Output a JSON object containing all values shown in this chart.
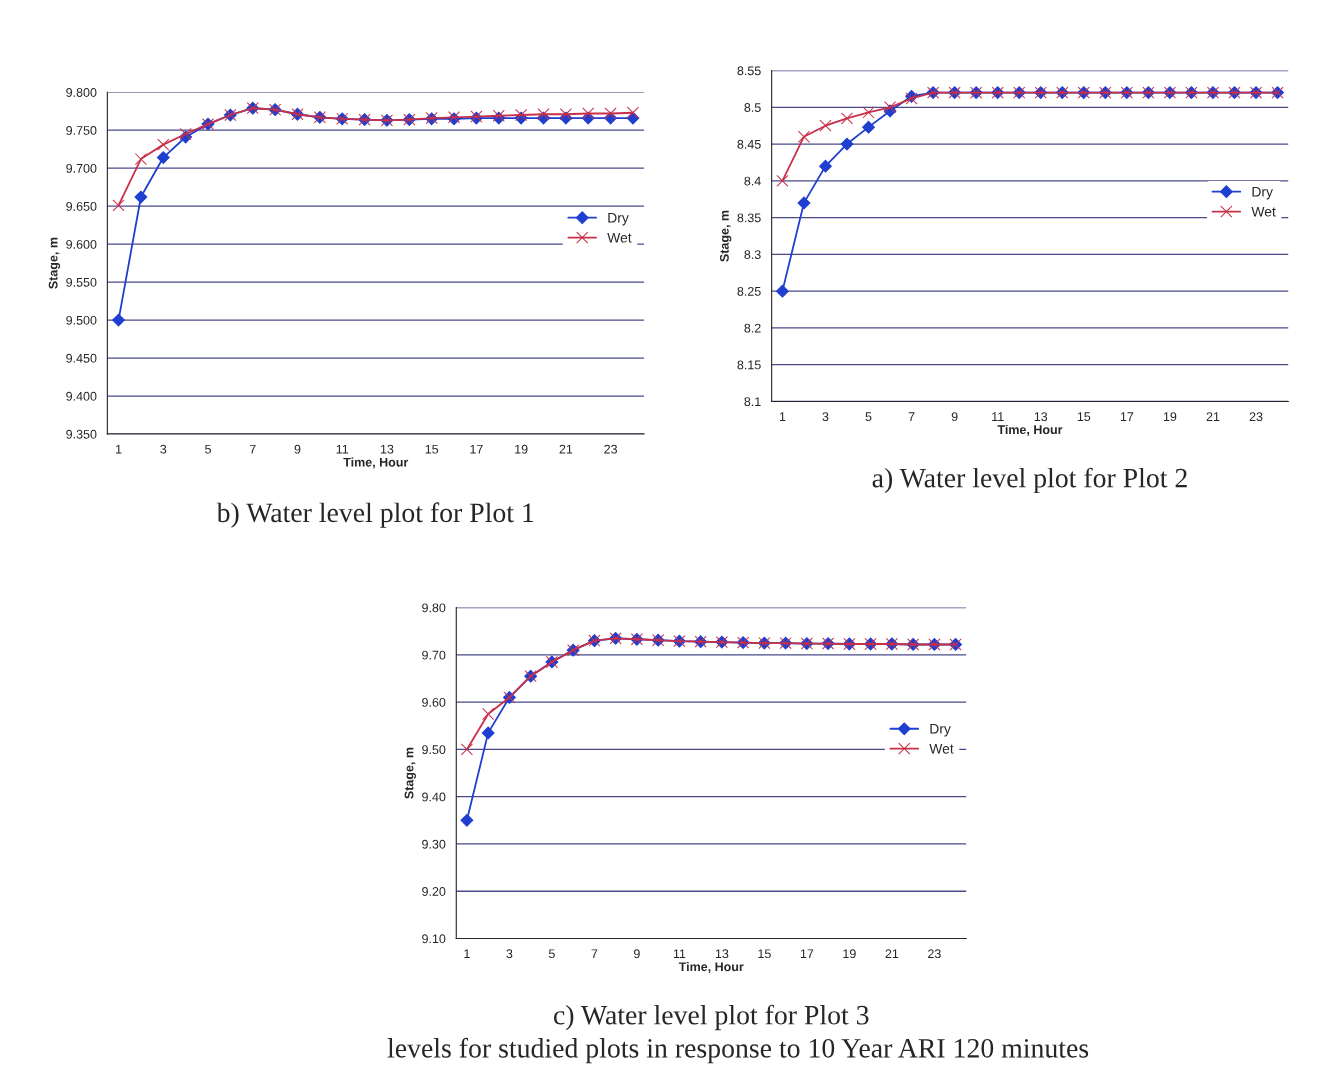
{
  "chart_data": [
    {
      "type": "line",
      "title": "b) Water level plot for Plot 1",
      "xlabel": "Time, Hour",
      "ylabel": "Stage, m",
      "categories": [
        "1",
        null,
        "3",
        null,
        "5",
        null,
        "7",
        null,
        "9",
        null,
        "11",
        null,
        "13",
        null,
        "15",
        null,
        "17",
        null,
        "19",
        null,
        "21",
        null,
        "23",
        null
      ],
      "series": [
        {
          "name": "Dry",
          "color": "#1f3fd0",
          "marker": "diamond",
          "values": [
            9.5,
            9.662,
            9.714,
            9.741,
            9.758,
            9.77,
            9.779,
            9.777,
            9.771,
            9.767,
            9.765,
            9.764,
            9.763,
            9.764,
            9.765,
            9.765,
            9.766,
            9.766,
            9.766,
            9.766,
            9.766,
            9.766,
            9.766,
            9.766
          ]
        },
        {
          "name": "Wet",
          "color": "#c8304a",
          "marker": "cross",
          "values": [
            9.651,
            9.712,
            9.731,
            9.745,
            9.758,
            9.77,
            9.779,
            9.777,
            9.771,
            9.767,
            9.765,
            9.764,
            9.763,
            9.764,
            9.766,
            9.767,
            9.768,
            9.769,
            9.77,
            9.771,
            9.771,
            9.772,
            9.772,
            9.773
          ]
        }
      ],
      "ylim": [
        9.35,
        9.8
      ],
      "yticks": [
        {
          "value": 9.35,
          "label": "9.350"
        },
        {
          "value": 9.4,
          "label": "9.400"
        },
        {
          "value": 9.45,
          "label": "9.450"
        },
        {
          "value": 9.5,
          "label": "9.500"
        },
        {
          "value": 9.55,
          "label": "9.550"
        },
        {
          "value": 9.6,
          "label": "9.600"
        },
        {
          "value": 9.65,
          "label": "9.650"
        },
        {
          "value": 9.7,
          "label": "9.700"
        },
        {
          "value": 9.75,
          "label": "9.750"
        },
        {
          "value": 9.8,
          "label": "9.800"
        }
      ],
      "grid": "y",
      "legend": "right",
      "line_style": "solid"
    },
    {
      "type": "line",
      "title": "a) Water level plot for Plot 2",
      "xlabel": "Time, Hour",
      "ylabel": "Stage, m",
      "categories": [
        "1",
        null,
        "3",
        null,
        "5",
        null,
        "7",
        null,
        "9",
        null,
        "11",
        null,
        "13",
        null,
        "15",
        null,
        "17",
        null,
        "19",
        null,
        "21",
        null,
        "23",
        null
      ],
      "series": [
        {
          "name": "Dry",
          "color": "#1f3fd0",
          "marker": "diamond",
          "values": [
            8.25,
            8.37,
            8.42,
            8.45,
            8.473,
            8.495,
            8.515,
            8.52,
            8.52,
            8.52,
            8.52,
            8.52,
            8.52,
            8.52,
            8.52,
            8.52,
            8.52,
            8.52,
            8.52,
            8.52,
            8.52,
            8.52,
            8.52,
            8.52
          ]
        },
        {
          "name": "Wet",
          "color": "#c8304a",
          "marker": "cross",
          "values": [
            8.4,
            8.46,
            8.475,
            8.485,
            8.493,
            8.5,
            8.512,
            8.52,
            8.52,
            8.52,
            8.52,
            8.52,
            8.52,
            8.52,
            8.52,
            8.52,
            8.52,
            8.52,
            8.52,
            8.52,
            8.52,
            8.52,
            8.52,
            8.52
          ]
        }
      ],
      "ylim": [
        8.1,
        8.55
      ],
      "yticks": [
        8.1,
        8.15,
        8.2,
        8.25,
        8.3,
        8.35,
        8.4,
        8.45,
        8.5,
        8.55
      ],
      "grid": "y",
      "legend": "right",
      "line_style": "solid"
    },
    {
      "type": "line",
      "title": "c) Water level plot for Plot 3",
      "xlabel": "Time, Hour",
      "ylabel": "Stage, m",
      "categories": [
        "1",
        null,
        "3",
        null,
        "5",
        null,
        "7",
        null,
        "9",
        null,
        "11",
        null,
        "13",
        null,
        "15",
        null,
        "17",
        null,
        "19",
        null,
        "21",
        null,
        "23",
        null
      ],
      "series": [
        {
          "name": "Dry",
          "color": "#1f3fd0",
          "marker": "diamond",
          "values": [
            9.35,
            9.535,
            9.61,
            9.655,
            9.685,
            9.71,
            9.73,
            9.735,
            9.733,
            9.731,
            9.729,
            9.728,
            9.727,
            9.726,
            9.725,
            9.725,
            9.724,
            9.724,
            9.723,
            9.723,
            9.723,
            9.722,
            9.722,
            9.722
          ]
        },
        {
          "name": "Wet",
          "color": "#c8304a",
          "marker": "cross",
          "values": [
            9.5,
            9.575,
            9.61,
            9.655,
            9.685,
            9.71,
            9.73,
            9.735,
            9.733,
            9.731,
            9.729,
            9.728,
            9.727,
            9.726,
            9.725,
            9.725,
            9.724,
            9.724,
            9.723,
            9.723,
            9.723,
            9.722,
            9.722,
            9.722
          ]
        }
      ],
      "ylim": [
        9.1,
        9.8
      ],
      "yticks": [
        {
          "value": 9.1,
          "label": "9.10"
        },
        {
          "value": 9.2,
          "label": "9.20"
        },
        {
          "value": 9.3,
          "label": "9.30"
        },
        {
          "value": 9.4,
          "label": "9.40"
        },
        {
          "value": 9.5,
          "label": "9.50"
        },
        {
          "value": 9.6,
          "label": "9.60"
        },
        {
          "value": 9.7,
          "label": "9.70"
        },
        {
          "value": 9.8,
          "label": "9.80"
        }
      ],
      "grid": "y",
      "legend": "right",
      "line_style": "solid",
      "annotations": [
        "levels for studied plots in response to 10 Year ARI 120 minutes"
      ]
    }
  ]
}
